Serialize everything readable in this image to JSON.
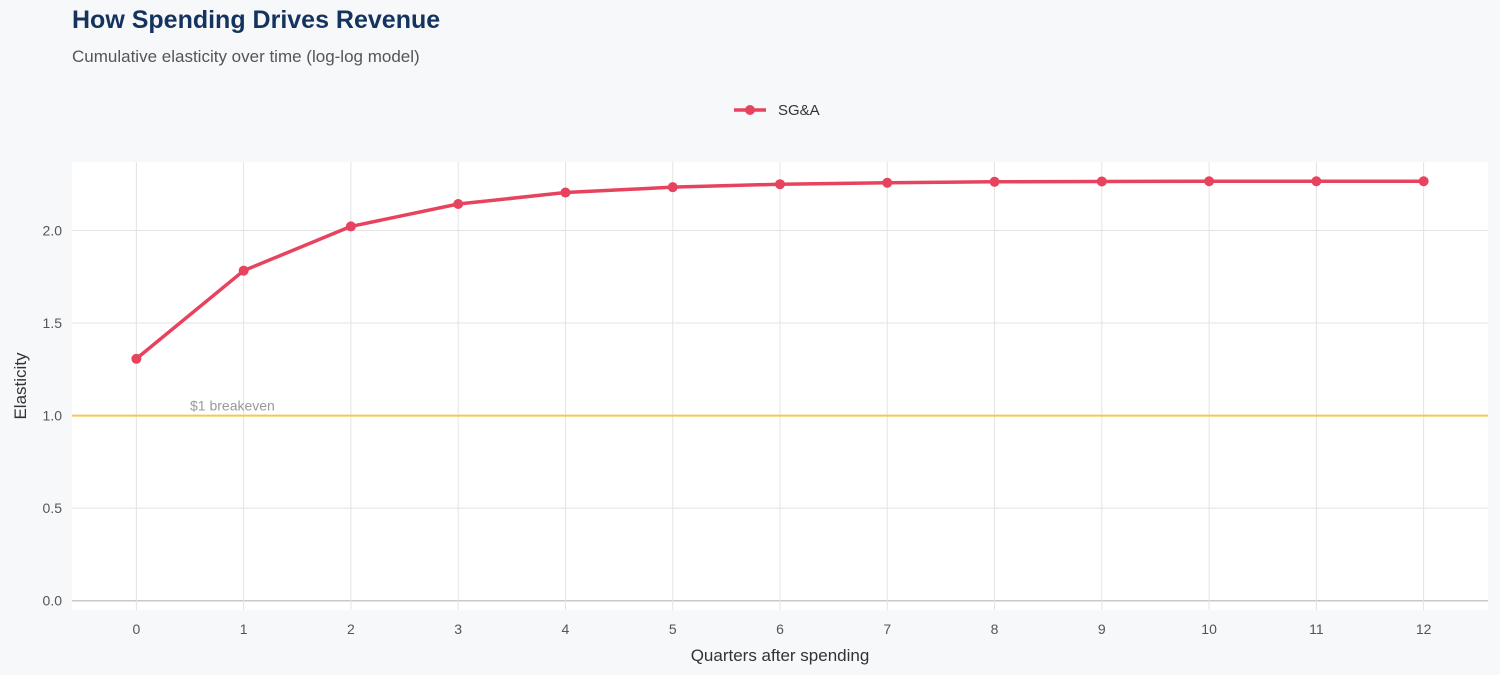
{
  "chart_data": {
    "type": "line",
    "title": "How Spending Drives Revenue",
    "subtitle": "Cumulative elasticity over time (log-log model)",
    "xlabel": "Quarters after spending",
    "ylabel": "Elasticity",
    "x": [
      0,
      1,
      2,
      3,
      4,
      5,
      6,
      7,
      8,
      9,
      10,
      11,
      12
    ],
    "xticks": [
      "0",
      "1",
      "2",
      "3",
      "4",
      "5",
      "6",
      "7",
      "8",
      "9",
      "10",
      "11",
      "12"
    ],
    "yticks": [
      "0.0",
      "0.5",
      "1.0",
      "1.5",
      "2.0"
    ],
    "xlim": [
      -0.6,
      12.6
    ],
    "ylim": [
      -0.05,
      2.37
    ],
    "grid": true,
    "legend_position": "top",
    "series": [
      {
        "name": "SG&A",
        "color": "#e8435e",
        "values": [
          1.307,
          1.783,
          2.022,
          2.143,
          2.205,
          2.234,
          2.25,
          2.258,
          2.263,
          2.265,
          2.266,
          2.266,
          2.266
        ]
      }
    ],
    "reference_line": {
      "y": 1.0,
      "label": "$1 breakeven",
      "color": "#f9c74f"
    }
  }
}
